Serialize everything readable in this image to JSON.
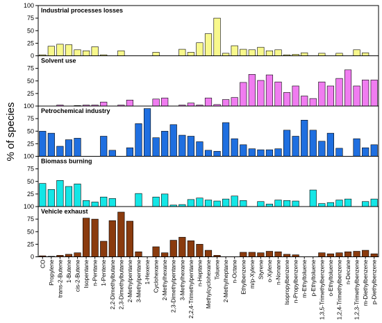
{
  "y_axis_label": "% of species",
  "chart_data": [
    {
      "type": "bar",
      "title": "Industrial processes losses",
      "color": "#f8f88c",
      "ylim": [
        0,
        100
      ],
      "yticks": [
        0,
        25,
        50,
        75,
        100
      ],
      "values": [
        2,
        19,
        23,
        22,
        12,
        10,
        18,
        2,
        0,
        10,
        0,
        0,
        0,
        7,
        0,
        0,
        13,
        7,
        26,
        44,
        75,
        5,
        20,
        13,
        12,
        17,
        10,
        12,
        2,
        3,
        6,
        0,
        5,
        0,
        5,
        0,
        12,
        6,
        0
      ]
    },
    {
      "type": "bar",
      "title": "Solvent use",
      "color": "#f07cf0",
      "ylim": [
        0,
        100
      ],
      "yticks": [
        25,
        50,
        75
      ],
      "values": [
        0,
        0,
        2,
        0,
        1,
        2,
        2,
        8,
        0,
        2,
        12,
        0,
        0,
        14,
        16,
        0,
        2,
        6,
        2,
        16,
        3,
        13,
        17,
        47,
        63,
        51,
        62,
        48,
        27,
        40,
        20,
        15,
        48,
        40,
        55,
        72,
        40,
        52,
        52
      ]
    },
    {
      "type": "bar",
      "title": "Petrochemical industry",
      "color": "#1f6fe0",
      "ylim": [
        0,
        100
      ],
      "yticks": [
        25,
        50,
        75,
        100
      ],
      "values": [
        50,
        46,
        20,
        33,
        36,
        0,
        0,
        40,
        12,
        0,
        17,
        65,
        95,
        37,
        50,
        63,
        42,
        40,
        29,
        12,
        10,
        67,
        35,
        23,
        15,
        13,
        13,
        15,
        52,
        40,
        72,
        52,
        30,
        46,
        16,
        0,
        35,
        17,
        23
      ]
    },
    {
      "type": "bar",
      "title": "Biomass burning",
      "color": "#14e6e6",
      "ylim": [
        0,
        100
      ],
      "yticks": [
        25,
        50,
        75,
        100
      ],
      "values": [
        46,
        34,
        52,
        40,
        45,
        12,
        9,
        19,
        16,
        0,
        0,
        26,
        0,
        19,
        25,
        3,
        4,
        14,
        17,
        13,
        11,
        15,
        21,
        12,
        0,
        10,
        5,
        13,
        12,
        11,
        0,
        33,
        6,
        8,
        13,
        15,
        0,
        10,
        15
      ]
    },
    {
      "type": "bar",
      "title": "Vehicle exhaust",
      "color": "#8a3b0e",
      "ylim": [
        0,
        100
      ],
      "yticks": [
        0,
        25,
        50,
        75,
        100
      ],
      "categories": [
        "CO",
        "Propylene",
        "trans-2-Butene",
        "1-Butene",
        "cis-2-Butene",
        "Isopentane",
        "n-Pentane",
        "1-Pentene",
        "2,2-Dimethylbutane",
        "2,3-Dimethylbutane",
        "2-Methylpentane",
        "3-Methylpentane",
        "1-Hexene",
        "Cyclohexane",
        "2-Methylhexane",
        "2,3-Dimethylpentane",
        "3-Methylhexane",
        "2,2,4-Trimethylpentane",
        "n-Heptane",
        "Methylcyclohexane",
        "Toluene",
        "2-Methylheptane",
        "n-Octane",
        "Ethylbenzene",
        "m/p-Xylene",
        "Styrene",
        "o-Xylene",
        "n-Nonane",
        "Isopropylbenzene",
        "n-Propylbenzene",
        "m-Ethyltoluene",
        "p-Ethyltoluene",
        "1,3,5-Trimethylbenzene",
        "o-Ethyltoluene",
        "1,2,4-Trimethylbenzene",
        "n-Decane",
        "1,2,3-Trimethylbenzene",
        "m-Diethylbenzene",
        "p-Diethylbenzene"
      ],
      "values": [
        2,
        1,
        3,
        5,
        8,
        77,
        75,
        31,
        72,
        89,
        71,
        10,
        0,
        20,
        8,
        33,
        39,
        32,
        25,
        13,
        3,
        0,
        0,
        9,
        9,
        8,
        11,
        10,
        5,
        4,
        0,
        0,
        8,
        6,
        8,
        10,
        11,
        13,
        6
      ]
    }
  ]
}
